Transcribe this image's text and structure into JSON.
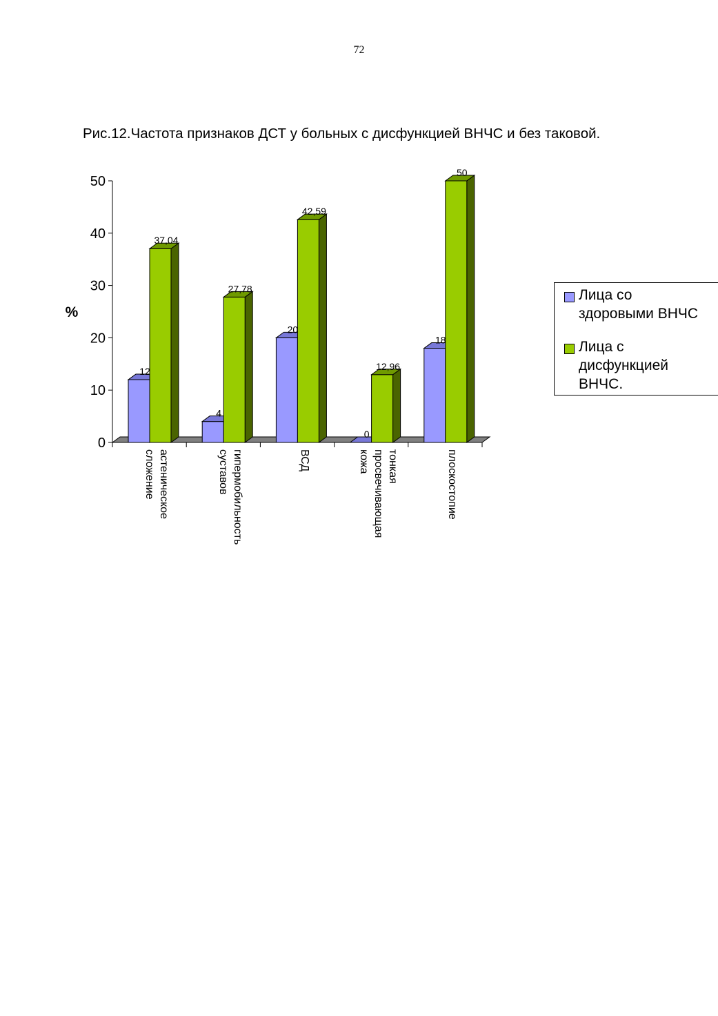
{
  "page": {
    "number": "72"
  },
  "figure": {
    "title": "Рис.12.Частота признаков ДСТ у больных с дисфункцией ВНЧС и без таковой."
  },
  "chart_data": {
    "type": "bar",
    "style": "3d-clustered",
    "categories": [
      [
        "астеническое",
        "сложение"
      ],
      [
        "гипермобильность",
        "суставов"
      ],
      [
        "ВСД"
      ],
      [
        "тонкая",
        "просвечивающая",
        "кожа"
      ],
      [
        "плоскостопие"
      ]
    ],
    "series": [
      {
        "name": "Лица со здоровыми ВНЧС",
        "values": [
          12,
          4,
          20,
          0,
          18
        ],
        "labels": [
          "12",
          "4",
          "20",
          "0",
          "18"
        ],
        "color": "#9999FF",
        "side_color": "#5a5ab8",
        "top_color": "#7878d8"
      },
      {
        "name": "Лица с дисфункцией ВНЧС.",
        "values": [
          37.04,
          27.78,
          42.59,
          12.96,
          50
        ],
        "labels": [
          "37,04",
          "27,78",
          "42,59",
          "12,96",
          "50"
        ],
        "color": "#99CC00",
        "side_color": "#4a6400",
        "top_color": "#6f9a00"
      }
    ],
    "ylabel": "%",
    "ylim": [
      0,
      50
    ],
    "yticks": [
      "0",
      "10",
      "20",
      "30",
      "40",
      "50"
    ],
    "grid": false,
    "legend_position": "right",
    "floor_color": "#808080"
  },
  "legend": {
    "items": [
      {
        "label": "Лица со здоровыми ВНЧС",
        "lines": [
          "Лица со",
          "здоровыми ВНЧС"
        ],
        "color": "#9999FF"
      },
      {
        "label": "Лица с дисфункцией ВНЧС.",
        "lines": [
          "Лица с",
          "дисфункцией",
          "ВНЧС."
        ],
        "color": "#99CC00"
      }
    ]
  }
}
